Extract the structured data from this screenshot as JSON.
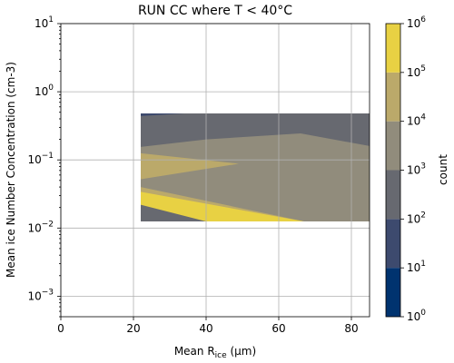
{
  "chart_data": {
    "type": "contourf",
    "title": "RUN CC where T < 40°C",
    "xlabel_main": "Mean R",
    "xlabel_sub": "ice",
    "xlabel_unit": " (μm)",
    "ylabel": "Mean ice Number Concentration (cm-3)",
    "colorbar_label": "count",
    "xlim": [
      0,
      85
    ],
    "ylim": [
      0.0005,
      10
    ],
    "yscale": "log",
    "grid": true,
    "x_ticks": [
      0,
      20,
      40,
      60,
      80
    ],
    "x_tick_labels": [
      "0",
      "20",
      "40",
      "60",
      "80"
    ],
    "y_ticks": [
      0.001,
      0.01,
      0.1,
      1,
      10
    ],
    "y_tick_labels": [
      [
        "10",
        "−3"
      ],
      [
        "10",
        "−2"
      ],
      [
        "10",
        "−1"
      ],
      [
        "10",
        "0"
      ],
      [
        "10",
        "1"
      ]
    ],
    "colorbar_levels": [
      1,
      10,
      100,
      1000,
      10000,
      100000,
      1000000
    ],
    "colorbar_tick_labels": [
      [
        "10",
        "0"
      ],
      [
        "10",
        "1"
      ],
      [
        "10",
        "2"
      ],
      [
        "10",
        "3"
      ],
      [
        "10",
        "4"
      ],
      [
        "10",
        "5"
      ],
      [
        "10",
        "6"
      ]
    ],
    "colorbar_colors": [
      "#00336f",
      "#3d4a6e",
      "#676970",
      "#918c7c",
      "#bba96a",
      "#e8d143"
    ],
    "regions": [
      {
        "level_index": 2,
        "points": [
          [
            22,
            0.48
          ],
          [
            85,
            0.48
          ],
          [
            85,
            0.0125
          ],
          [
            22,
            0.0125
          ]
        ]
      },
      {
        "level_index": 1,
        "points": [
          [
            22,
            0.48
          ],
          [
            34,
            0.48
          ],
          [
            22,
            0.44
          ]
        ]
      },
      {
        "level_index": 3,
        "points": [
          [
            22,
            0.155
          ],
          [
            40,
            0.2
          ],
          [
            66,
            0.245
          ],
          [
            85,
            0.16
          ],
          [
            85,
            0.0125
          ],
          [
            67,
            0.0125
          ],
          [
            22,
            0.022
          ]
        ]
      },
      {
        "level_index": 4,
        "points": [
          [
            22,
            0.125
          ],
          [
            49,
            0.088
          ],
          [
            22,
            0.052
          ]
        ]
      },
      {
        "level_index": 4,
        "points": [
          [
            22,
            0.04
          ],
          [
            67,
            0.0125
          ],
          [
            22,
            0.029
          ]
        ]
      },
      {
        "level_index": 5,
        "points": [
          [
            22,
            0.034
          ],
          [
            67,
            0.0125
          ],
          [
            40,
            0.0125
          ],
          [
            22,
            0.022
          ]
        ]
      }
    ]
  }
}
